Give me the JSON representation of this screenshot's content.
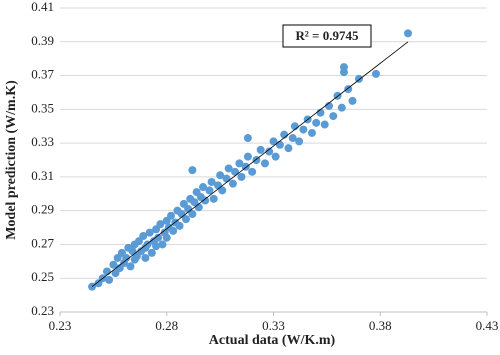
{
  "chart_data": {
    "type": "scatter",
    "x_label": "Actual data (W/K.m)",
    "y_label": "Model prediction (W/m.K)",
    "annotation": "R² = 0.9745",
    "color": "#5b9bd5",
    "grid": true,
    "xlim": [
      0.23,
      0.43
    ],
    "xticks": [
      0.23,
      0.28,
      0.33,
      0.38,
      0.43
    ],
    "ylim": [
      0.23,
      0.41
    ],
    "yticks": [
      0.23,
      0.25,
      0.27,
      0.29,
      0.31,
      0.33,
      0.35,
      0.37,
      0.39,
      0.41
    ],
    "trendline": {
      "x": [
        0.245,
        0.393
      ],
      "y": [
        0.245,
        0.39
      ]
    },
    "x": [
      0.245,
      0.248,
      0.25,
      0.252,
      0.253,
      0.255,
      0.256,
      0.257,
      0.258,
      0.259,
      0.26,
      0.261,
      0.262,
      0.263,
      0.264,
      0.265,
      0.265,
      0.266,
      0.267,
      0.268,
      0.269,
      0.27,
      0.27,
      0.271,
      0.272,
      0.273,
      0.274,
      0.275,
      0.275,
      0.276,
      0.277,
      0.278,
      0.279,
      0.28,
      0.28,
      0.281,
      0.282,
      0.283,
      0.284,
      0.285,
      0.286,
      0.287,
      0.288,
      0.289,
      0.29,
      0.291,
      0.292,
      0.293,
      0.294,
      0.295,
      0.296,
      0.297,
      0.298,
      0.3,
      0.301,
      0.302,
      0.304,
      0.305,
      0.306,
      0.308,
      0.309,
      0.311,
      0.312,
      0.314,
      0.315,
      0.317,
      0.318,
      0.32,
      0.322,
      0.324,
      0.326,
      0.328,
      0.33,
      0.331,
      0.333,
      0.335,
      0.337,
      0.339,
      0.34,
      0.342,
      0.344,
      0.346,
      0.348,
      0.35,
      0.352,
      0.354,
      0.356,
      0.358,
      0.36,
      0.362,
      0.363,
      0.365,
      0.367,
      0.37,
      0.378,
      0.363,
      0.393,
      0.318,
      0.292
    ],
    "y": [
      0.245,
      0.247,
      0.25,
      0.254,
      0.249,
      0.258,
      0.253,
      0.262,
      0.256,
      0.265,
      0.259,
      0.262,
      0.268,
      0.257,
      0.266,
      0.27,
      0.261,
      0.263,
      0.272,
      0.266,
      0.275,
      0.268,
      0.262,
      0.27,
      0.277,
      0.265,
      0.272,
      0.279,
      0.269,
      0.274,
      0.282,
      0.27,
      0.277,
      0.284,
      0.274,
      0.28,
      0.287,
      0.278,
      0.283,
      0.29,
      0.281,
      0.288,
      0.294,
      0.285,
      0.291,
      0.297,
      0.288,
      0.295,
      0.301,
      0.292,
      0.298,
      0.304,
      0.296,
      0.302,
      0.307,
      0.297,
      0.305,
      0.311,
      0.302,
      0.309,
      0.315,
      0.306,
      0.313,
      0.318,
      0.31,
      0.316,
      0.322,
      0.313,
      0.32,
      0.326,
      0.318,
      0.325,
      0.331,
      0.322,
      0.329,
      0.335,
      0.327,
      0.333,
      0.34,
      0.331,
      0.338,
      0.344,
      0.336,
      0.342,
      0.348,
      0.341,
      0.352,
      0.346,
      0.358,
      0.351,
      0.372,
      0.362,
      0.355,
      0.368,
      0.371,
      0.375,
      0.395,
      0.333,
      0.314
    ]
  }
}
